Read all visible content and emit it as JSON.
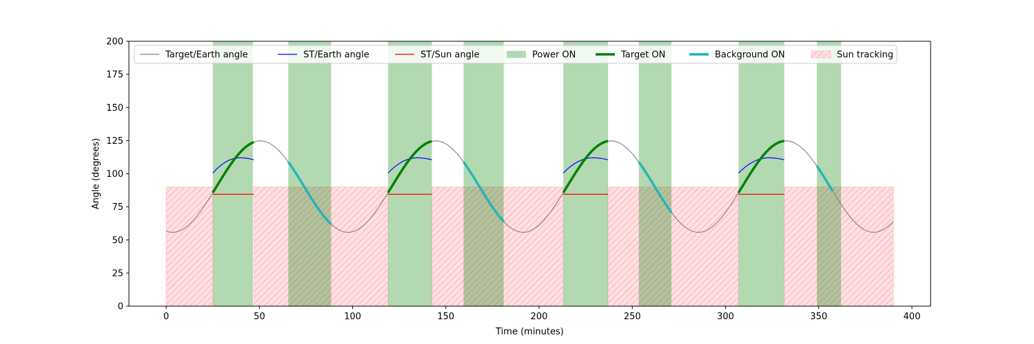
{
  "chart_data": {
    "type": "line",
    "xlabel": "Time (minutes)",
    "ylabel": "Angle (degrees)",
    "xlim": [
      -20,
      410
    ],
    "ylim": [
      0,
      200
    ],
    "x_ticks": [
      0,
      50,
      100,
      150,
      200,
      250,
      300,
      350,
      400
    ],
    "y_ticks": [
      0,
      25,
      50,
      75,
      100,
      125,
      150,
      175,
      200
    ],
    "grid": false,
    "legend_position": "top",
    "legend": [
      {
        "label": "Target/Earth angle",
        "kind": "line",
        "color": "#808080"
      },
      {
        "label": "ST/Earth angle",
        "kind": "line",
        "color": "#0000ff"
      },
      {
        "label": "ST/Sun angle",
        "kind": "line",
        "color": "#ff0000"
      },
      {
        "label": "Power ON",
        "kind": "patch",
        "color": "#b2d8b2"
      },
      {
        "label": "Target ON",
        "kind": "thickline",
        "color": "#008000"
      },
      {
        "label": "Background ON",
        "kind": "thickline",
        "color": "#17b6b6"
      },
      {
        "label": "Sun tracking",
        "kind": "hatch",
        "color": "#ffb6bd"
      }
    ],
    "target_earth_angle": {
      "period": 94,
      "x_start": 0,
      "x_end": 390,
      "description_values": {
        "min": 55.8,
        "max": 124.8,
        "phase_of_minimum": 3.5
      }
    },
    "power_on_intervals": [
      [
        25,
        46.5
      ],
      [
        65.5,
        88.5
      ],
      [
        119,
        142.5
      ],
      [
        159.5,
        181
      ],
      [
        213,
        237
      ],
      [
        253.5,
        271
      ],
      [
        307,
        331.5
      ],
      [
        349,
        362
      ]
    ],
    "sun_tracking_intervals": [
      [
        0,
        25
      ],
      [
        47,
        119
      ],
      [
        142.5,
        213
      ],
      [
        237,
        307
      ],
      [
        331.5,
        390
      ]
    ],
    "sun_tracking_level": 90,
    "target_on_intervals": [
      [
        25,
        47
      ],
      [
        119,
        142.5
      ],
      [
        213,
        237
      ],
      [
        307,
        331.5
      ]
    ],
    "background_on_intervals": [
      [
        65.5,
        88.5
      ],
      [
        159.5,
        181
      ],
      [
        253.5,
        271
      ],
      [
        349,
        357.5
      ]
    ],
    "st_earth_intervals": [
      {
        "x": [
          25,
          47
        ],
        "y_start": 100.5,
        "y_peak": 112,
        "y_end": 110.5
      },
      {
        "x": [
          119,
          142.5
        ],
        "y_start": 100.5,
        "y_peak": 112,
        "y_end": 110.5
      },
      {
        "x": [
          213,
          237
        ],
        "y_start": 100.5,
        "y_peak": 112,
        "y_end": 110.5
      },
      {
        "x": [
          307,
          331.5
        ],
        "y_start": 100.5,
        "y_peak": 112,
        "y_end": 110.5
      }
    ],
    "st_sun_segments": [
      {
        "x": [
          25,
          47
        ],
        "y": 84.5
      },
      {
        "x": [
          119,
          142.5
        ],
        "y": 84.5
      },
      {
        "x": [
          213,
          237
        ],
        "y": 84.5
      },
      {
        "x": [
          307,
          331.5
        ],
        "y": 84.5
      }
    ]
  }
}
